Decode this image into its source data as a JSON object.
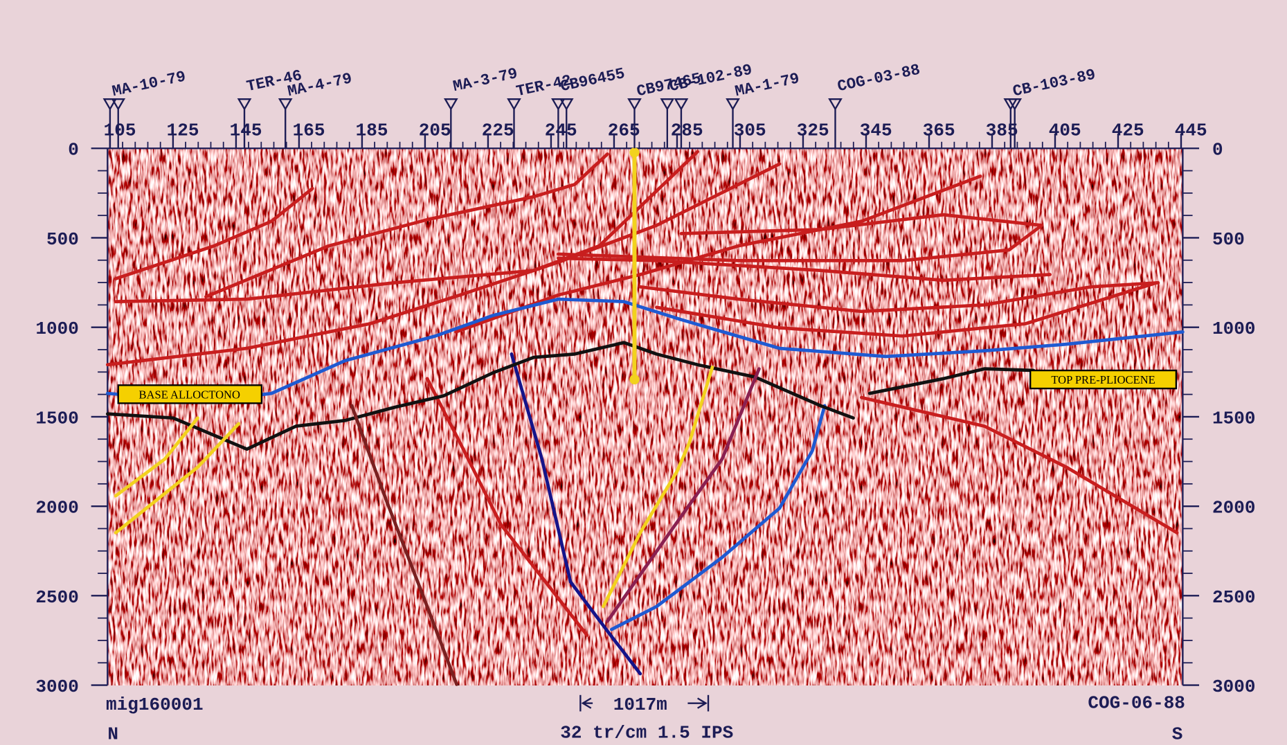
{
  "wells": [
    {
      "label": "MA-10-79"
    },
    {
      "label": "TER-46"
    },
    {
      "label": "MA-4-79"
    },
    {
      "label": "MA-3-79"
    },
    {
      "label": "TER-42"
    },
    {
      "label": "CB96455"
    },
    {
      "label": "CB97465"
    },
    {
      "label": "CB-102-89"
    },
    {
      "label": "MA-1-79"
    },
    {
      "label": "COG-03-88"
    },
    {
      "label": "CB-103-89"
    }
  ],
  "trace_ticks": [
    105,
    125,
    145,
    165,
    185,
    205,
    225,
    245,
    265,
    285,
    305,
    325,
    345,
    365,
    385,
    405,
    425,
    445
  ],
  "time_ticks": [
    0,
    500,
    1000,
    1500,
    2000,
    2500,
    3000
  ],
  "horizon_labels": {
    "left": "BASE ALLOCTONO",
    "right": "TOP PRE-PLIOCENE"
  },
  "footer": {
    "line_id": "mig160001",
    "north": "N",
    "scale_bar": "1017m",
    "display": "32 tr/cm 1.5 IPS",
    "section": "COG-06-88",
    "south": "S"
  }
}
